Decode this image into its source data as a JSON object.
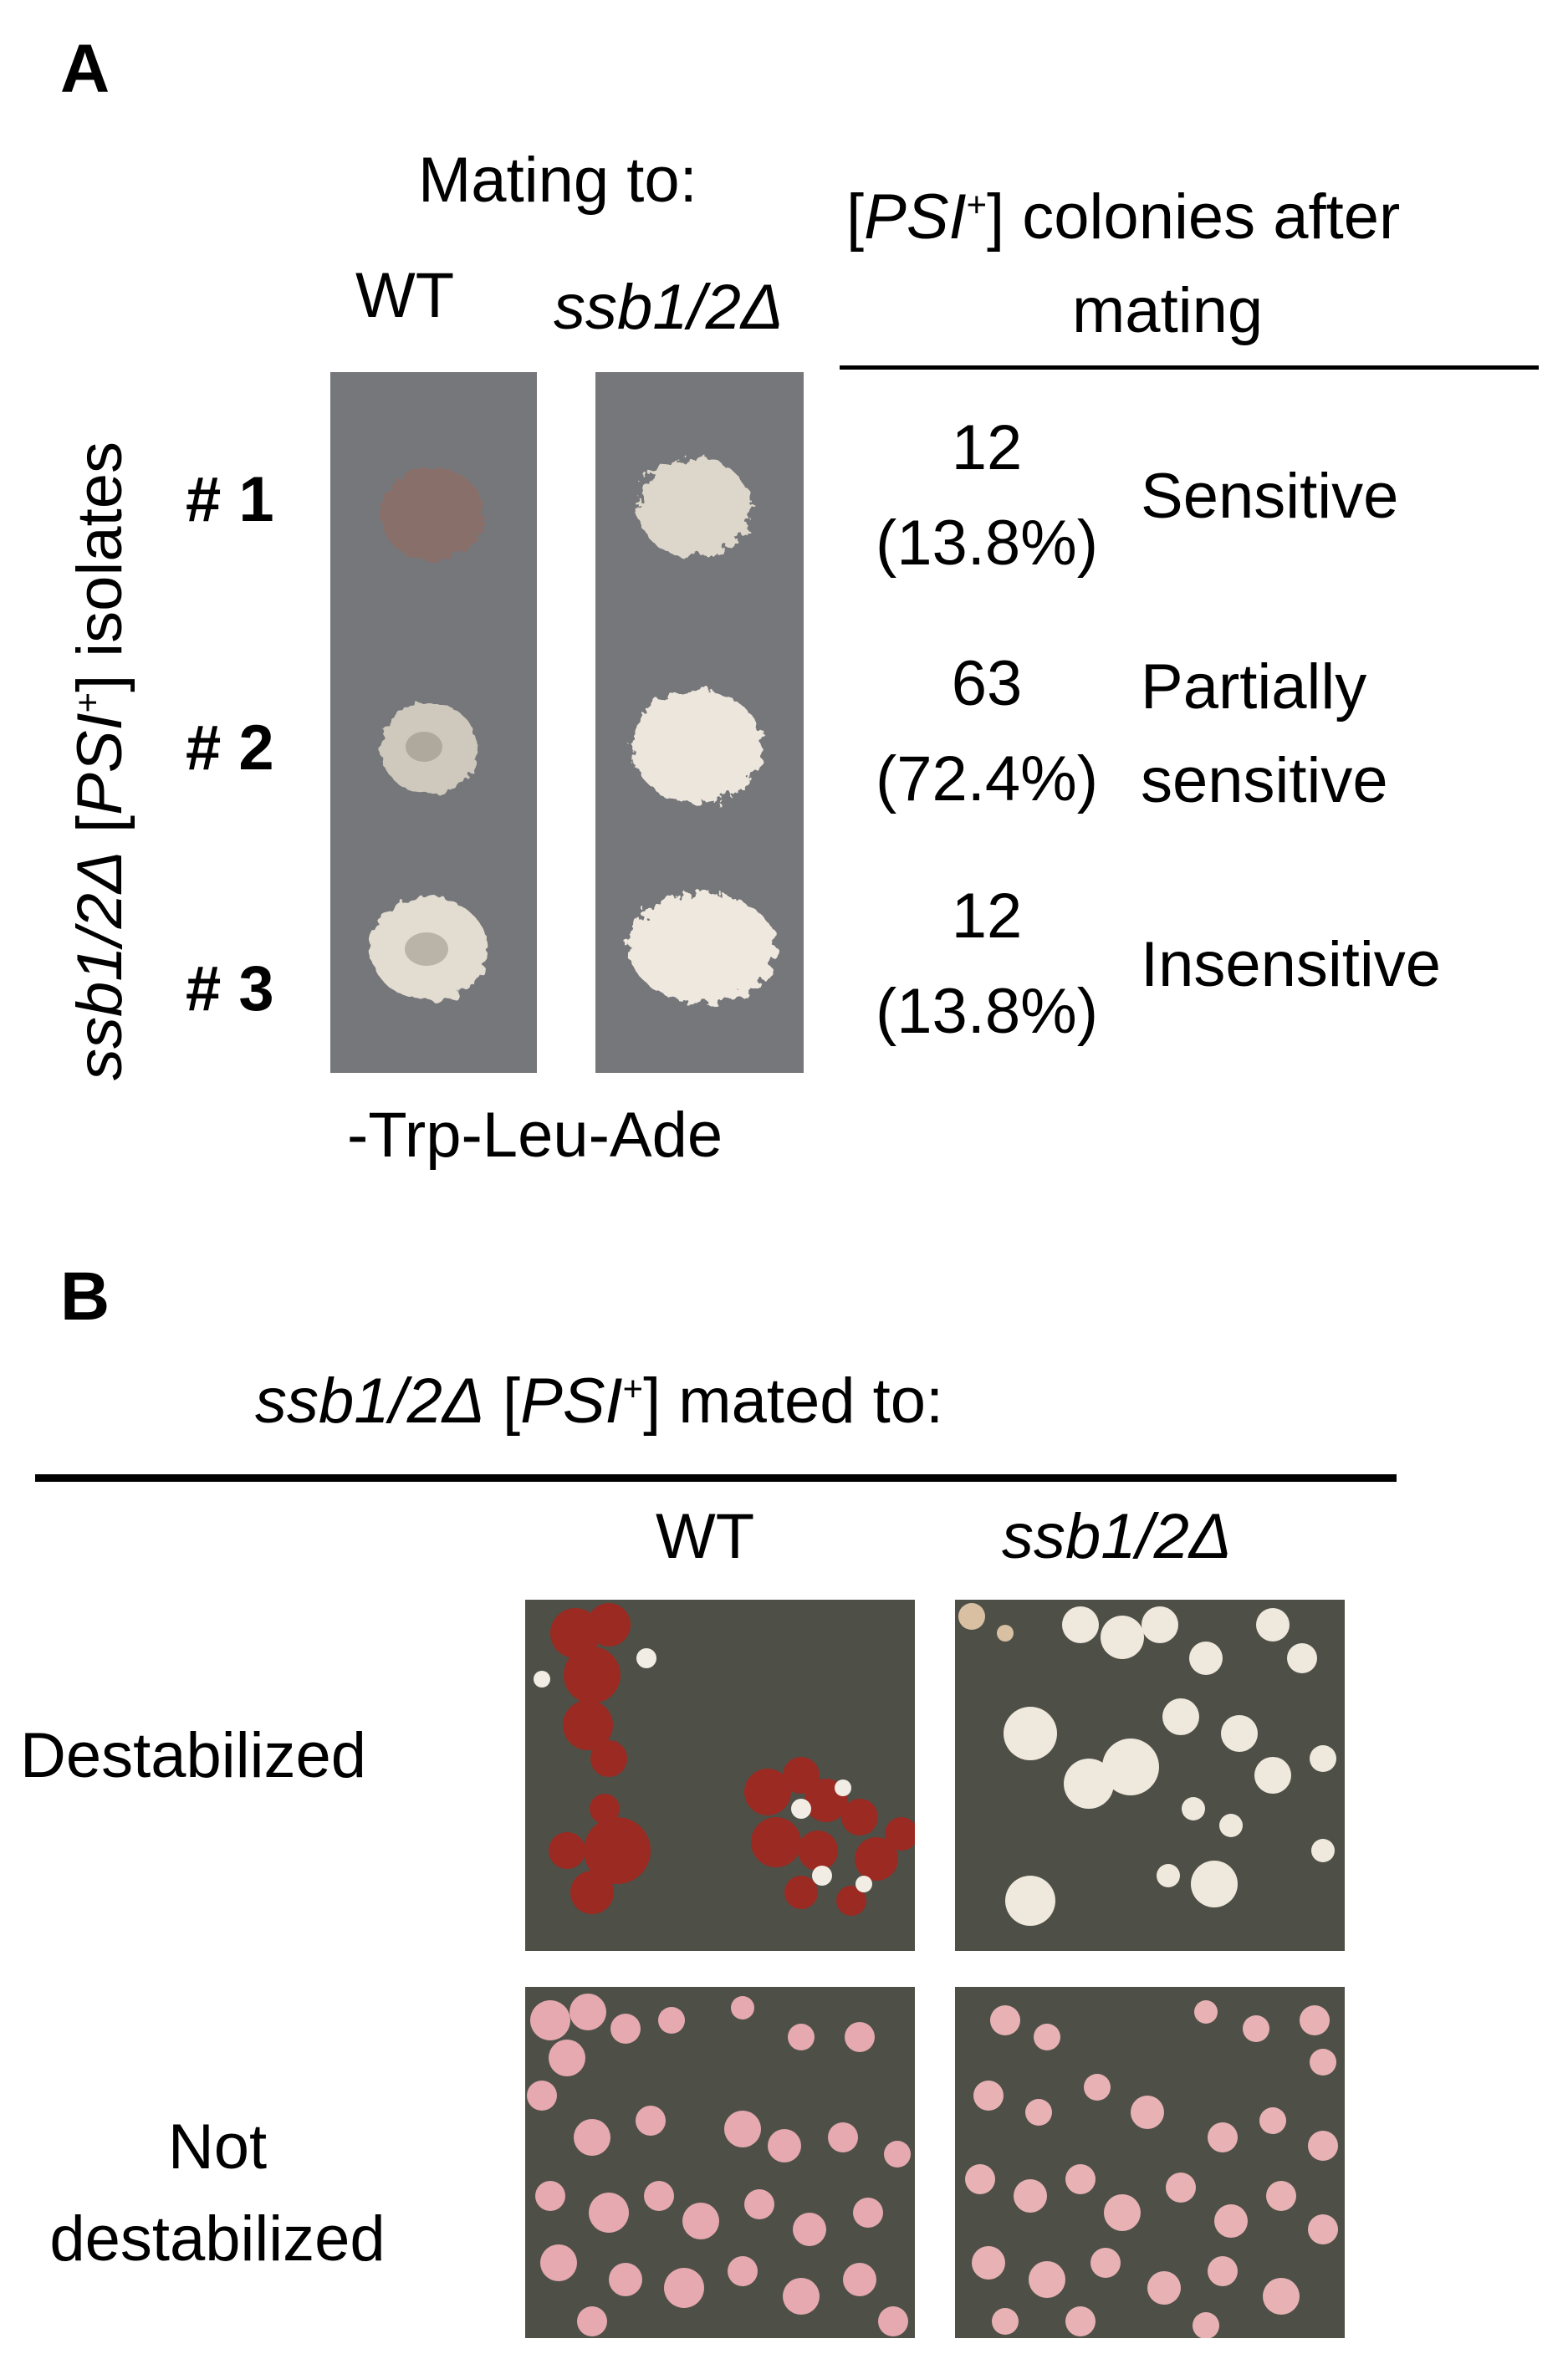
{
  "panel_a": {
    "letter": "A",
    "mating_to": "Mating to:",
    "col_wt": "WT",
    "col_ssb": "ssb1/2Δ",
    "side_label_italic": "ssb1/2Δ",
    "side_label_open": " [",
    "side_label_psi": "PSI",
    "side_label_sup": "+",
    "side_label_close": "] isolates",
    "header_open": "[",
    "header_psi": "PSI",
    "header_sup": "+",
    "header_rest": "] colonies after",
    "header_line2": "mating",
    "medium": "-Trp-Leu-Ade",
    "rows": [
      {
        "isolate": "# 1",
        "count": "12",
        "percent": "(13.8%)",
        "class_line1": "Sensitive",
        "class_line2": ""
      },
      {
        "isolate": "# 2",
        "count": "63",
        "percent": "(72.4%)",
        "class_line1": "Partially",
        "class_line2": "sensitive"
      },
      {
        "isolate": "# 3",
        "count": "12",
        "percent": "(13.8%)",
        "class_line1": "Insensitive",
        "class_line2": ""
      }
    ]
  },
  "panel_b": {
    "letter": "B",
    "title_italic": "ssb1/2Δ",
    "title_open": " [",
    "title_psi": "PSI",
    "title_sup": "+",
    "title_rest": "] mated to:",
    "col_wt": "WT",
    "col_ssb": "ssb1/2Δ",
    "row1": "Destabilized",
    "row2_line1": "Not",
    "row2_line2": "destabilized"
  },
  "colors": {
    "plate_gray": "#76777b",
    "dish_dark": "#4e5048",
    "colony_red": "#9a2a22",
    "colony_cream": "#f2ede4",
    "colony_pink": "#e7aab0"
  }
}
